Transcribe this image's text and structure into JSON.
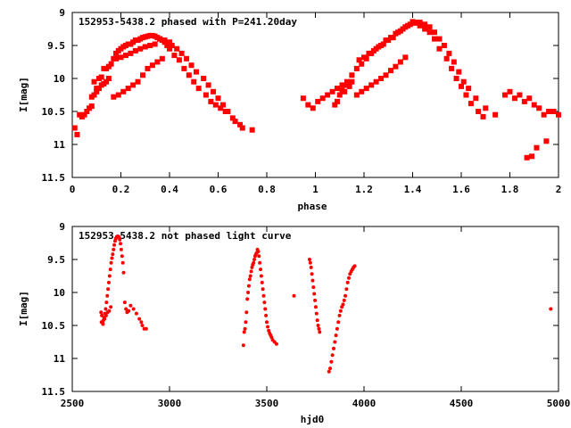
{
  "chart_data": [
    {
      "type": "scatter",
      "title": "152953-5438.2 phased with P=241.20day",
      "xlabel": "phase",
      "ylabel": "I[mag]",
      "xlim": [
        0,
        2
      ],
      "ylim": [
        9,
        11.5
      ],
      "y_inverted": true,
      "x_ticks": [
        "0",
        "0.2",
        "0.4",
        "0.6",
        "0.8",
        "1",
        "1.2",
        "1.4",
        "1.6",
        "1.8",
        "2"
      ],
      "y_ticks": [
        "9",
        "9.5",
        "10",
        "10.5",
        "11",
        "11.5"
      ],
      "marker_color": "#ff0000",
      "series": [
        {
          "x": [
            0.01,
            0.02,
            0.03,
            0.04,
            0.05,
            0.06,
            0.07,
            0.08,
            0.09,
            0.1,
            0.11,
            0.12,
            0.13,
            0.14,
            0.15,
            0.16,
            0.17,
            0.18,
            0.19,
            0.2,
            0.21,
            0.22,
            0.23,
            0.24,
            0.25,
            0.26,
            0.27,
            0.28,
            0.29,
            0.3,
            0.31,
            0.32,
            0.33,
            0.34,
            0.35,
            0.36,
            0.37,
            0.38,
            0.39,
            0.4,
            0.42,
            0.44,
            0.46,
            0.48,
            0.5,
            0.52,
            0.55,
            0.57,
            0.59,
            0.61,
            0.63,
            0.66,
            0.7,
            0.74,
            0.17,
            0.19,
            0.21,
            0.23,
            0.25,
            0.27,
            0.29,
            0.31,
            0.33,
            0.35,
            0.37,
            0.12,
            0.14,
            0.1,
            0.09,
            0.08,
            0.11,
            0.13,
            0.15,
            0.18,
            0.2,
            0.22,
            0.24,
            0.26,
            0.28,
            0.3,
            0.32,
            0.34,
            0.36,
            0.38,
            0.4,
            0.41,
            0.43,
            0.45,
            0.47,
            0.49,
            0.51,
            0.54,
            0.56,
            0.58,
            0.6,
            0.62,
            0.64,
            0.67,
            0.69,
            0.95,
            0.97,
            0.99,
            1.01,
            1.03,
            1.05,
            1.07,
            1.09,
            1.11,
            1.13,
            1.15,
            1.17,
            1.19,
            1.21,
            1.23,
            1.25,
            1.27,
            1.29,
            1.31,
            1.33,
            1.35,
            1.37,
            1.39,
            1.41,
            1.43,
            1.45,
            1.47,
            1.49,
            1.51,
            1.53,
            1.55,
            1.57,
            1.59,
            1.61,
            1.63,
            1.66,
            1.7,
            1.74,
            1.17,
            1.19,
            1.21,
            1.23,
            1.25,
            1.27,
            1.29,
            1.31,
            1.33,
            1.35,
            1.37,
            1.12,
            1.14,
            1.1,
            1.09,
            1.08,
            1.11,
            1.13,
            1.15,
            1.18,
            1.2,
            1.22,
            1.24,
            1.26,
            1.28,
            1.3,
            1.32,
            1.34,
            1.36,
            1.38,
            1.4,
            1.41,
            1.43,
            1.45,
            1.47,
            1.49,
            1.51,
            1.54,
            1.56,
            1.58,
            1.6,
            1.62,
            1.64,
            1.67,
            1.69,
            1.78,
            1.8,
            1.82,
            1.84,
            1.86,
            1.88,
            1.9,
            1.92,
            1.94,
            1.96,
            1.98,
            2.0,
            1.87,
            1.89,
            1.91,
            1.95
          ],
          "y": [
            10.75,
            10.85,
            10.55,
            10.58,
            10.55,
            10.5,
            10.45,
            10.42,
            10.05,
            10.15,
            10.0,
            9.98,
            9.85,
            9.85,
            9.82,
            9.78,
            9.7,
            9.62,
            9.58,
            9.55,
            9.52,
            9.5,
            9.48,
            9.48,
            9.45,
            9.42,
            9.42,
            9.4,
            9.38,
            9.37,
            9.36,
            9.35,
            9.35,
            9.36,
            9.38,
            9.4,
            9.42,
            9.45,
            9.5,
            9.55,
            9.65,
            9.72,
            9.85,
            9.95,
            10.05,
            10.15,
            10.25,
            10.35,
            10.4,
            10.45,
            10.5,
            10.6,
            10.75,
            10.78,
            10.28,
            10.25,
            10.2,
            10.15,
            10.1,
            10.05,
            9.95,
            9.85,
            9.8,
            9.75,
            9.7,
            10.1,
            10.05,
            10.2,
            10.25,
            10.28,
            10.15,
            10.08,
            10.0,
            9.7,
            9.68,
            9.65,
            9.62,
            9.58,
            9.55,
            9.52,
            9.5,
            9.48,
            9.4,
            9.42,
            9.45,
            9.5,
            9.55,
            9.62,
            9.7,
            9.8,
            9.9,
            10.0,
            10.1,
            10.2,
            10.3,
            10.4,
            10.5,
            10.65,
            10.7,
            10.3,
            10.4,
            10.45,
            10.35,
            10.3,
            10.25,
            10.2,
            10.15,
            10.1,
            10.05,
            9.95,
            9.85,
            9.78,
            9.7,
            9.62,
            9.55,
            9.5,
            9.42,
            9.38,
            9.32,
            9.28,
            9.22,
            9.18,
            9.16,
            9.15,
            9.18,
            9.22,
            9.3,
            9.4,
            9.5,
            9.62,
            9.75,
            9.9,
            10.05,
            10.15,
            10.3,
            10.45,
            10.55,
            10.25,
            10.2,
            10.15,
            10.1,
            10.05,
            10.0,
            9.95,
            9.88,
            9.82,
            9.75,
            9.68,
            10.2,
            10.12,
            10.25,
            10.35,
            10.4,
            10.18,
            10.1,
            10.05,
            9.72,
            9.68,
            9.62,
            9.58,
            9.52,
            9.48,
            9.42,
            9.38,
            9.3,
            9.25,
            9.2,
            9.14,
            9.15,
            9.2,
            9.25,
            9.3,
            9.4,
            9.55,
            9.7,
            9.85,
            10.0,
            10.12,
            10.25,
            10.38,
            10.5,
            10.58,
            10.25,
            10.2,
            10.3,
            10.25,
            10.35,
            10.3,
            10.4,
            10.45,
            10.55,
            10.5,
            10.5,
            10.55,
            11.2,
            11.18,
            11.05,
            10.95
          ]
        }
      ]
    },
    {
      "type": "scatter",
      "title": "152953-5438.2 not phased light curve",
      "xlabel": "hjd0",
      "ylabel": "I[mag]",
      "xlim": [
        2500,
        5000
      ],
      "ylim": [
        9,
        11.5
      ],
      "y_inverted": true,
      "x_ticks": [
        "2500",
        "3000",
        "3500",
        "4000",
        "4500",
        "5000"
      ],
      "y_ticks": [
        "9",
        "9.5",
        "10",
        "10.5",
        "11",
        "11.5"
      ],
      "marker_color": "#ff0000",
      "series": [
        {
          "x": [
            2648,
            2652,
            2656,
            2660,
            2664,
            2668,
            2672,
            2676,
            2680,
            2684,
            2688,
            2692,
            2696,
            2700,
            2704,
            2708,
            2712,
            2716,
            2720,
            2724,
            2728,
            2732,
            2736,
            2740,
            2744,
            2748,
            2752,
            2756,
            2760,
            2764,
            2770,
            2776,
            2782,
            2790,
            2800,
            2815,
            2830,
            2845,
            2855,
            2860,
            2870,
            2880,
            2650,
            2658,
            2666,
            2674,
            2682,
            2690,
            2698,
            3380,
            3384,
            3388,
            3392,
            3396,
            3400,
            3404,
            3408,
            3412,
            3416,
            3420,
            3424,
            3428,
            3432,
            3436,
            3440,
            3444,
            3448,
            3452,
            3456,
            3460,
            3464,
            3468,
            3472,
            3476,
            3480,
            3484,
            3488,
            3492,
            3496,
            3500,
            3505,
            3510,
            3515,
            3520,
            3525,
            3530,
            3540,
            3550,
            3640,
            3720,
            3724,
            3728,
            3732,
            3736,
            3740,
            3744,
            3748,
            3752,
            3756,
            3760,
            3764,
            3768,
            3772,
            3820,
            3826,
            3832,
            3838,
            3844,
            3850,
            3856,
            3862,
            3868,
            3874,
            3880,
            3886,
            3892,
            3898,
            3904,
            3910,
            3916,
            3922,
            3928,
            3934,
            3940,
            3946,
            3952,
            4960
          ],
          "y": [
            10.3,
            10.35,
            10.45,
            10.42,
            10.38,
            10.32,
            10.25,
            10.15,
            10.05,
            9.95,
            9.85,
            9.75,
            9.65,
            9.55,
            9.48,
            9.42,
            9.35,
            9.28,
            9.22,
            9.18,
            9.16,
            9.15,
            9.15,
            9.16,
            9.2,
            9.26,
            9.35,
            9.45,
            9.55,
            9.7,
            10.15,
            10.25,
            10.3,
            10.28,
            10.2,
            10.25,
            10.32,
            10.4,
            10.45,
            10.5,
            10.55,
            10.55,
            10.45,
            10.48,
            10.4,
            10.35,
            10.3,
            10.28,
            10.22,
            10.8,
            10.6,
            10.55,
            10.45,
            10.3,
            10.1,
            10.0,
            9.9,
            9.8,
            9.75,
            9.68,
            9.62,
            9.58,
            9.55,
            9.5,
            9.45,
            9.42,
            9.4,
            9.35,
            9.38,
            9.45,
            9.55,
            9.65,
            9.75,
            9.85,
            9.95,
            10.05,
            10.15,
            10.25,
            10.35,
            10.45,
            10.52,
            10.58,
            10.62,
            10.65,
            10.68,
            10.72,
            10.75,
            10.78,
            10.05,
            9.5,
            9.55,
            9.62,
            9.72,
            9.82,
            9.92,
            10.02,
            10.12,
            10.22,
            10.32,
            10.42,
            10.5,
            10.55,
            10.6,
            11.2,
            11.15,
            11.05,
            10.95,
            10.85,
            10.75,
            10.65,
            10.55,
            10.45,
            10.35,
            10.28,
            10.22,
            10.18,
            10.12,
            10.05,
            9.95,
            9.85,
            9.78,
            9.72,
            9.68,
            9.65,
            9.62,
            9.6,
            10.25
          ]
        }
      ]
    }
  ]
}
